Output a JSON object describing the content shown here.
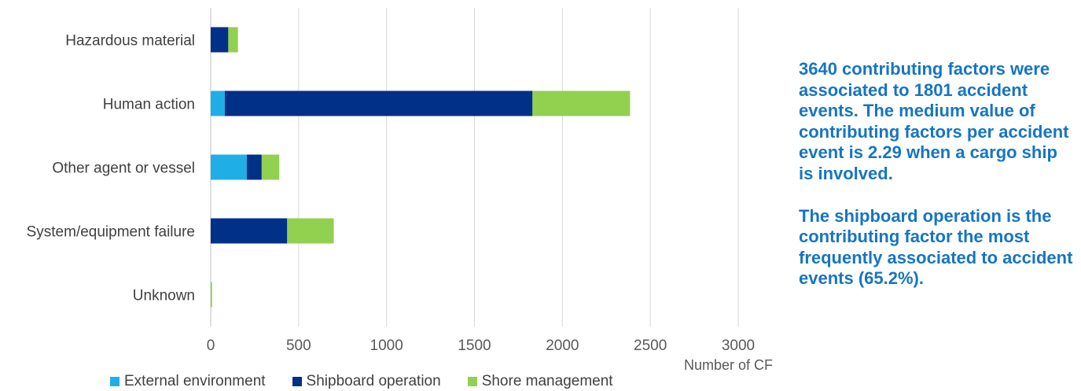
{
  "chart_data": {
    "type": "bar",
    "orientation": "horizontal",
    "stacked": true,
    "categories": [
      "Hazardous material",
      "Human action",
      "Other agent or vessel",
      "System/equipment failure",
      "Unknown"
    ],
    "series": [
      {
        "name": "External environment",
        "color": "#1fafe6",
        "values": [
          0,
          80,
          205,
          0,
          0
        ]
      },
      {
        "name": "Shipboard operation",
        "color": "#003087",
        "values": [
          100,
          1750,
          85,
          435,
          0
        ]
      },
      {
        "name": "Shore management",
        "color": "#92d050",
        "values": [
          55,
          555,
          100,
          265,
          8
        ]
      }
    ],
    "xlabel": "Number of CF",
    "xlim": [
      0,
      3000
    ],
    "xticks": [
      "0",
      "500",
      "1000",
      "1500",
      "2000",
      "2500",
      "3000"
    ],
    "grid": "vertical",
    "legend": "bottom"
  },
  "notes": [
    "3640 contributing factors were associated to 1801 accident events. The medium value of contributing factors per accident event is 2.29 when a cargo ship is involved.",
    "The shipboard operation is the contributing factor the most frequently associated to accident events (65.2%)."
  ]
}
